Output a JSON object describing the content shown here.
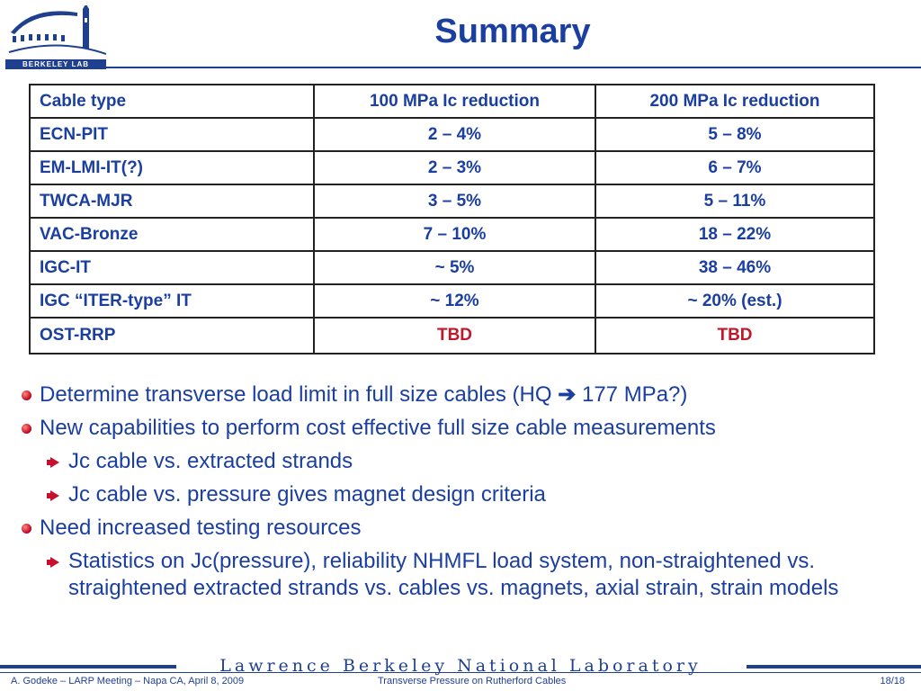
{
  "header": {
    "logo_text": "BERKELEY LAB",
    "title": "Summary"
  },
  "table": {
    "columns": [
      "Cable type",
      "100 MPa Ic reduction",
      "200 MPa Ic reduction"
    ],
    "rows": [
      [
        "ECN-PIT",
        "2 – 4%",
        "5 – 8%"
      ],
      [
        "EM-LMI-IT(?)",
        "2 – 3%",
        "6 – 7%"
      ],
      [
        "TWCA-MJR",
        "3 – 5%",
        "5 – 11%"
      ],
      [
        "VAC-Bronze",
        "7 – 10%",
        "18 – 22%"
      ],
      [
        "IGC-IT",
        "~ 5%",
        "38 – 46%"
      ],
      [
        "IGC “ITER-type” IT",
        "~ 12%",
        "~ 20% (est.)"
      ],
      [
        "OST-RRP",
        "TBD",
        "TBD"
      ]
    ]
  },
  "bullets": {
    "b1_before": "Determine transverse load limit in full size cables (HQ ",
    "b1_arrow": "➔",
    "b1_after": " 177 MPa?)",
    "b2": "New capabilities to perform cost effective full size cable measurements",
    "b2_sub1": "Jc cable vs. extracted strands",
    "b2_sub2": "Jc cable vs. pressure gives magnet design criteria",
    "b3": "Need increased testing resources",
    "b3_sub1": "Statistics on Jc(pressure), reliability NHMFL load system, non-straightened vs. straightened extracted strands vs. cables vs. magnets, axial strain, strain models"
  },
  "footer": {
    "lab_name": "Lawrence Berkeley National Laboratory",
    "left": "A. Godeke – LARP Meeting – Napa CA, April 8, 2009",
    "center": "Transverse Pressure on Rutherford Cables",
    "page": "18/18"
  },
  "colors": {
    "accent_blue": "#1b3fa0",
    "tbd_red": "#c0182a"
  }
}
